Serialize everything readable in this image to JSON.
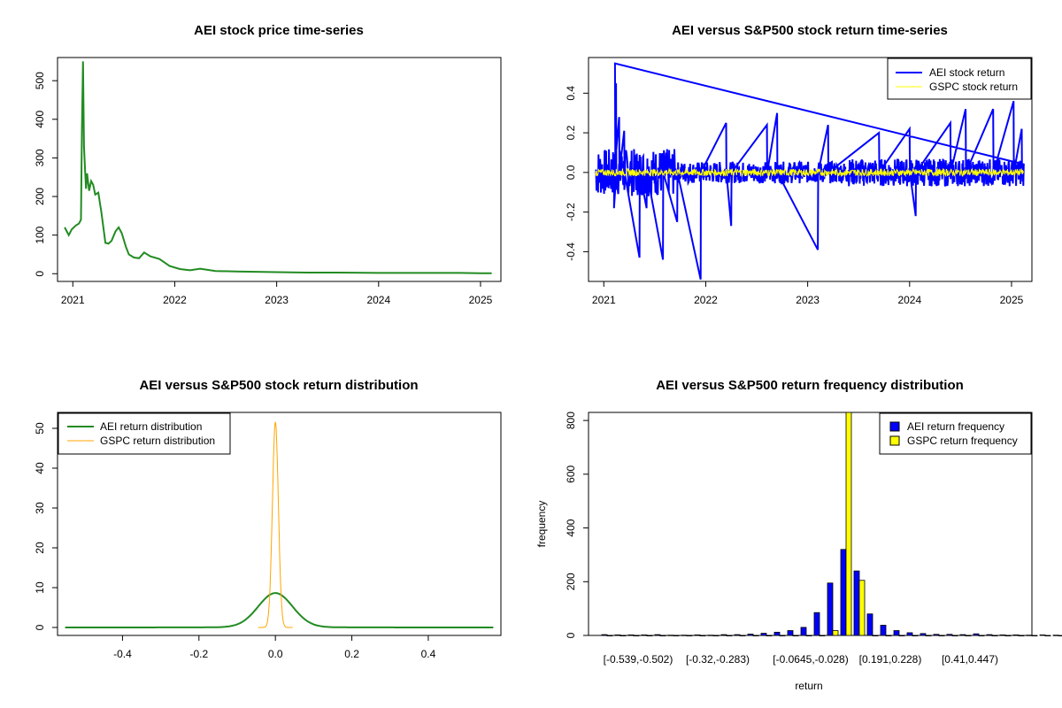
{
  "chart_data": [
    {
      "type": "line",
      "title": "AEI stock price time-series",
      "xlabel": "",
      "ylabel": "",
      "xlim": [
        2020.85,
        2025.2
      ],
      "ylim": [
        -20,
        560
      ],
      "x_ticks": [
        "2021",
        "2022",
        "2023",
        "2024",
        "2025"
      ],
      "y_ticks": [
        "0",
        "100",
        "200",
        "300",
        "400",
        "500"
      ],
      "series": [
        {
          "name": "AEI price",
          "color": "#228B22",
          "x": [
            2020.92,
            2020.96,
            2020.99,
            2021.03,
            2021.06,
            2021.08,
            2021.09,
            2021.1,
            2021.11,
            2021.12,
            2021.13,
            2021.14,
            2021.16,
            2021.18,
            2021.2,
            2021.22,
            2021.25,
            2021.28,
            2021.32,
            2021.35,
            2021.38,
            2021.42,
            2021.45,
            2021.48,
            2021.52,
            2021.55,
            2021.6,
            2021.65,
            2021.7,
            2021.76,
            2021.85,
            2021.95,
            2022.05,
            2022.15,
            2022.25,
            2022.4,
            2022.6,
            2022.8,
            2023.0,
            2023.3,
            2023.6,
            2024.0,
            2024.4,
            2024.8,
            2025.0,
            2025.11
          ],
          "y": [
            120,
            100,
            115,
            125,
            130,
            140,
            380,
            550,
            330,
            270,
            220,
            260,
            215,
            240,
            230,
            205,
            210,
            160,
            80,
            78,
            85,
            110,
            120,
            105,
            70,
            50,
            42,
            40,
            55,
            45,
            38,
            20,
            12,
            9,
            13,
            7,
            6,
            5,
            4,
            3,
            3,
            2,
            2,
            2,
            1,
            1
          ]
        }
      ]
    },
    {
      "type": "line",
      "title": "AEI versus S&P500 stock return time-series",
      "xlabel": "",
      "ylabel": "",
      "xlim": [
        2020.85,
        2025.2
      ],
      "ylim": [
        -0.55,
        0.58
      ],
      "x_ticks": [
        "2021",
        "2022",
        "2023",
        "2024",
        "2025"
      ],
      "y_ticks": [
        "-0.4",
        "-0.2",
        "0.0",
        "0.2",
        "0.4"
      ],
      "legend": "top-right",
      "series": [
        {
          "name": "AEI stock return",
          "color": "#0000FF",
          "spikes": [
            [
              2021.11,
              0.55
            ],
            [
              2021.12,
              0.45
            ],
            [
              2021.1,
              -0.18
            ],
            [
              2021.15,
              0.28
            ],
            [
              2021.2,
              0.21
            ],
            [
              2021.35,
              -0.43
            ],
            [
              2021.42,
              -0.18
            ],
            [
              2021.58,
              -0.44
            ],
            [
              2021.72,
              -0.25
            ],
            [
              2021.95,
              -0.54
            ],
            [
              2022.2,
              0.25
            ],
            [
              2022.25,
              -0.27
            ],
            [
              2022.6,
              0.24
            ],
            [
              2022.7,
              0.3
            ],
            [
              2023.1,
              -0.39
            ],
            [
              2023.2,
              0.24
            ],
            [
              2023.7,
              0.2
            ],
            [
              2024.0,
              0.22
            ],
            [
              2024.06,
              -0.22
            ],
            [
              2024.4,
              0.25
            ],
            [
              2024.55,
              0.32
            ],
            [
              2024.82,
              0.32
            ],
            [
              2025.02,
              0.36
            ],
            [
              2025.1,
              0.22
            ]
          ]
        },
        {
          "name": "GSPC stock return",
          "color": "#FFFF00"
        }
      ]
    },
    {
      "type": "line",
      "title": "AEI versus S&P500 stock return distribution",
      "xlabel": "",
      "ylabel": "",
      "xlim": [
        -0.57,
        0.59
      ],
      "ylim": [
        -2,
        54
      ],
      "x_ticks": [
        "-0.4",
        "-0.2",
        "0.0",
        "0.2",
        "0.4"
      ],
      "y_ticks": [
        "0",
        "10",
        "20",
        "30",
        "40",
        "50"
      ],
      "legend": "top-left",
      "series": [
        {
          "name": "AEI return distribution",
          "color": "#228B22",
          "peak": 8.5,
          "sd": 0.045
        },
        {
          "name": "GSPC return distribution",
          "color": "#FFA500",
          "peak": 51.5,
          "sd": 0.0078
        }
      ]
    },
    {
      "type": "bar",
      "title": "AEI versus S&P500 return frequency distribution",
      "xlabel": "return",
      "ylabel": "frequency",
      "ylim": [
        0,
        830
      ],
      "y_ticks": [
        "0",
        "200",
        "400",
        "600",
        "800"
      ],
      "categories_shown": [
        "[-0.539,-0.502)",
        "[-0.32,-0.283)",
        "[-0.0645,-0.028)",
        "[0.191,0.228)",
        "[0.41,0.447)"
      ],
      "legend": "top-right",
      "series": [
        {
          "name": "AEI return frequency",
          "color": "#0000FF",
          "values": [
            3,
            2,
            2,
            2,
            3,
            1,
            1,
            2,
            1,
            3,
            3,
            5,
            8,
            12,
            18,
            30,
            85,
            195,
            320,
            240,
            80,
            38,
            18,
            10,
            7,
            4,
            4,
            3,
            6,
            3,
            2,
            2,
            1,
            2,
            1,
            1
          ]
        },
        {
          "name": "GSPC return frequency",
          "color": "#FFFF00",
          "values": [
            0,
            0,
            0,
            0,
            0,
            0,
            0,
            0,
            0,
            0,
            0,
            0,
            0,
            0,
            0,
            0,
            0,
            18,
            830,
            205,
            0,
            0,
            0,
            0,
            0,
            0,
            0,
            0,
            0,
            0,
            0,
            0,
            0,
            0,
            0,
            0
          ]
        }
      ]
    }
  ]
}
